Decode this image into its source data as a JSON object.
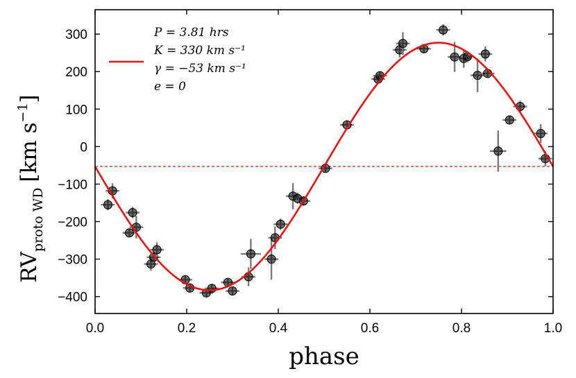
{
  "chart_data": {
    "type": "scatter",
    "xlabel": "phase",
    "ylabel": "RV",
    "ylabel_subscript": "proto WD",
    "ylabel_unit": "[km s",
    "ylabel_unit_exp": "−1",
    "ylabel_unit_close": "]",
    "xlim": [
      0.0,
      1.0
    ],
    "ylim": [
      -445,
      365
    ],
    "x_ticks": [
      0.0,
      0.2,
      0.4,
      0.6,
      0.8,
      1.0
    ],
    "x_tick_labels": [
      "0.0",
      "0.2",
      "0.4",
      "0.6",
      "0.8",
      "1.0"
    ],
    "y_ticks": [
      -400,
      -300,
      -200,
      -100,
      0,
      100,
      200,
      300
    ],
    "y_tick_labels": [
      "−400",
      "−300",
      "−200",
      "−100",
      "0",
      "100",
      "200",
      "300"
    ],
    "grid": false,
    "legend_position": "top-left",
    "legend": [
      {
        "label": "P = 3.81 hrs"
      },
      {
        "label": "K = 330 km s⁻¹"
      },
      {
        "label": "γ = −53 km s⁻¹"
      },
      {
        "label": "e = 0"
      }
    ],
    "model": {
      "name": "sinusoid",
      "P": "3.81 hrs",
      "K": 330,
      "gamma": -53,
      "e": 0,
      "color": "#e8130f"
    },
    "gamma_line": {
      "value": -53,
      "color": "#e8130f",
      "style": "dashed"
    },
    "points": [
      {
        "x": 0.028,
        "y": -155,
        "xerr": 0.015,
        "yerr": 15
      },
      {
        "x": 0.038,
        "y": -118,
        "xerr": 0.015,
        "yerr": 20
      },
      {
        "x": 0.075,
        "y": -230,
        "xerr": 0.015,
        "yerr": 10
      },
      {
        "x": 0.082,
        "y": -176,
        "xerr": 0.015,
        "yerr": 15
      },
      {
        "x": 0.09,
        "y": -215,
        "xerr": 0.015,
        "yerr": 30
      },
      {
        "x": 0.122,
        "y": -313,
        "xerr": 0.015,
        "yerr": 18
      },
      {
        "x": 0.128,
        "y": -295,
        "xerr": 0.015,
        "yerr": 15
      },
      {
        "x": 0.135,
        "y": -275,
        "xerr": 0.015,
        "yerr": 20
      },
      {
        "x": 0.197,
        "y": -355,
        "xerr": 0.015,
        "yerr": 12
      },
      {
        "x": 0.207,
        "y": -377,
        "xerr": 0.015,
        "yerr": 10
      },
      {
        "x": 0.243,
        "y": -390,
        "xerr": 0.015,
        "yerr": 12
      },
      {
        "x": 0.255,
        "y": -378,
        "xerr": 0.015,
        "yerr": 10
      },
      {
        "x": 0.29,
        "y": -362,
        "xerr": 0.015,
        "yerr": 12
      },
      {
        "x": 0.3,
        "y": -385,
        "xerr": 0.015,
        "yerr": 10
      },
      {
        "x": 0.335,
        "y": -347,
        "xerr": 0.015,
        "yerr": 25
      },
      {
        "x": 0.34,
        "y": -286,
        "xerr": 0.022,
        "yerr": 40
      },
      {
        "x": 0.385,
        "y": -300,
        "xerr": 0.015,
        "yerr": 55
      },
      {
        "x": 0.393,
        "y": -243,
        "xerr": 0.015,
        "yerr": 30
      },
      {
        "x": 0.405,
        "y": -207,
        "xerr": 0.015,
        "yerr": 15
      },
      {
        "x": 0.432,
        "y": -132,
        "xerr": 0.015,
        "yerr": 35
      },
      {
        "x": 0.442,
        "y": -138,
        "xerr": 0.015,
        "yerr": 15
      },
      {
        "x": 0.455,
        "y": -145,
        "xerr": 0.015,
        "yerr": 12
      },
      {
        "x": 0.503,
        "y": -58,
        "xerr": 0.015,
        "yerr": 10
      },
      {
        "x": 0.55,
        "y": 58,
        "xerr": 0.015,
        "yerr": 10
      },
      {
        "x": 0.618,
        "y": 180,
        "xerr": 0.015,
        "yerr": 12
      },
      {
        "x": 0.622,
        "y": 189,
        "xerr": 0.015,
        "yerr": 10
      },
      {
        "x": 0.665,
        "y": 258,
        "xerr": 0.015,
        "yerr": 20
      },
      {
        "x": 0.672,
        "y": 275,
        "xerr": 0.015,
        "yerr": 30
      },
      {
        "x": 0.718,
        "y": 261,
        "xerr": 0.015,
        "yerr": 12
      },
      {
        "x": 0.76,
        "y": 311,
        "xerr": 0.015,
        "yerr": 15
      },
      {
        "x": 0.785,
        "y": 239,
        "xerr": 0.015,
        "yerr": 40
      },
      {
        "x": 0.805,
        "y": 235,
        "xerr": 0.015,
        "yerr": 25
      },
      {
        "x": 0.813,
        "y": 240,
        "xerr": 0.015,
        "yerr": 15
      },
      {
        "x": 0.835,
        "y": 190,
        "xerr": 0.015,
        "yerr": 45
      },
      {
        "x": 0.852,
        "y": 247,
        "xerr": 0.015,
        "yerr": 20
      },
      {
        "x": 0.857,
        "y": 195,
        "xerr": 0.015,
        "yerr": 10
      },
      {
        "x": 0.88,
        "y": -12,
        "xerr": 0.018,
        "yerr": 55
      },
      {
        "x": 0.905,
        "y": 71,
        "xerr": 0.015,
        "yerr": 10
      },
      {
        "x": 0.928,
        "y": 107,
        "xerr": 0.015,
        "yerr": 15
      },
      {
        "x": 0.973,
        "y": 35,
        "xerr": 0.015,
        "yerr": 25
      },
      {
        "x": 0.983,
        "y": -32,
        "xerr": 0.015,
        "yerr": 20
      }
    ]
  }
}
